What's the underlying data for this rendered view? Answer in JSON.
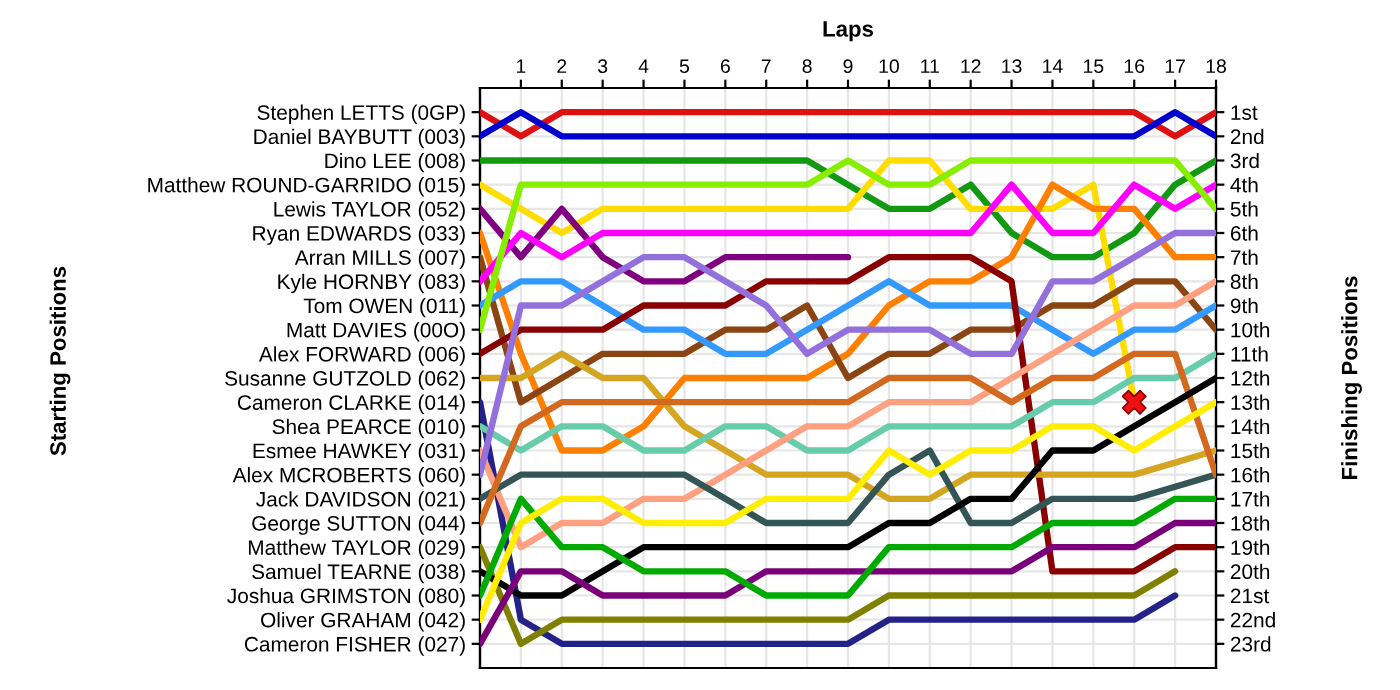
{
  "chart_data": {
    "type": "line",
    "xlabel": "Laps",
    "y2label": "Finishing Positions",
    "annotations": [
      "Starting Positions"
    ],
    "x": [
      0,
      1,
      2,
      3,
      4,
      5,
      6,
      7,
      8,
      9,
      10,
      11,
      12,
      13,
      14,
      15,
      16,
      17,
      18
    ],
    "xlim": [
      0,
      18
    ],
    "xticks": [
      1,
      2,
      3,
      4,
      5,
      6,
      7,
      8,
      9,
      10,
      11,
      12,
      13,
      14,
      15,
      16,
      17,
      18
    ],
    "y_categories": [
      "Stephen LETTS (0GP)",
      "Daniel BAYBUTT (003)",
      "Dino LEE (008)",
      "Matthew ROUND-GARRIDO (015)",
      "Lewis TAYLOR (052)",
      "Ryan EDWARDS (033)",
      "Arran MILLS (007)",
      "Kyle HORNBY (083)",
      "Tom OWEN (011)",
      "Matt DAVIES (00O)",
      "Alex FORWARD (006)",
      "Susanne GUTZOLD (062)",
      "Cameron CLARKE (014)",
      "Shea PEARCE (010)",
      "Esmee HAWKEY (031)",
      "Alex MCROBERTS (060)",
      "Jack DAVIDSON (021)",
      "George SUTTON (044)",
      "Matthew TAYLOR (029)",
      "Samuel TEARNE (038)",
      "Joshua GRIMSTON (080)",
      "Oliver GRAHAM (042)",
      "Cameron FISHER (027)"
    ],
    "y2lim": [
      24,
      0
    ],
    "y2ticks": [
      {
        "value": 1,
        "label": "1st"
      },
      {
        "value": 2,
        "label": "2nd"
      },
      {
        "value": 3,
        "label": "3rd"
      },
      {
        "value": 4,
        "label": "4th"
      },
      {
        "value": 5,
        "label": "5th"
      },
      {
        "value": 6,
        "label": "6th"
      },
      {
        "value": 7,
        "label": "7th"
      },
      {
        "value": 8,
        "label": "8th"
      },
      {
        "value": 9,
        "label": "9th"
      },
      {
        "value": 10,
        "label": "10th"
      },
      {
        "value": 11,
        "label": "11th"
      },
      {
        "value": 12,
        "label": "12th"
      },
      {
        "value": 13,
        "label": "13th"
      },
      {
        "value": 14,
        "label": "14th"
      },
      {
        "value": 15,
        "label": "15th"
      },
      {
        "value": 16,
        "label": "16th"
      },
      {
        "value": 17,
        "label": "17th"
      },
      {
        "value": 18,
        "label": "18th"
      },
      {
        "value": 19,
        "label": "19th"
      },
      {
        "value": 20,
        "label": "20th"
      },
      {
        "value": 21,
        "label": "21st"
      },
      {
        "value": 22,
        "label": "22nd"
      },
      {
        "value": 23,
        "label": "23rd"
      }
    ],
    "grid": true,
    "marker": "none",
    "line_style": "solid",
    "series": [
      {
        "axis": "y2",
        "color": "#dd1111",
        "values": [
          1,
          2,
          1,
          1,
          1,
          1,
          1,
          1,
          1,
          1,
          1,
          1,
          1,
          1,
          1,
          1,
          1,
          2,
          1
        ]
      },
      {
        "axis": "y2",
        "color": "#0000cc",
        "values": [
          2,
          1,
          2,
          2,
          2,
          2,
          2,
          2,
          2,
          2,
          2,
          2,
          2,
          2,
          2,
          2,
          2,
          1,
          2
        ]
      },
      {
        "axis": "y2",
        "color": "#119911",
        "values": [
          3,
          3,
          3,
          3,
          3,
          3,
          3,
          3,
          3,
          4,
          5,
          5,
          4,
          6,
          7,
          7,
          6,
          4,
          3
        ]
      },
      {
        "axis": "y2",
        "color": "#ffdd00",
        "values": [
          4,
          5,
          6,
          5,
          5,
          5,
          5,
          5,
          5,
          5,
          3,
          3,
          5,
          5,
          5,
          4,
          13,
          null,
          null
        ]
      },
      {
        "axis": "y2",
        "color": "#800080",
        "values": [
          5,
          7,
          5,
          7,
          8,
          8,
          7,
          7,
          7,
          7,
          null,
          null,
          null,
          null,
          null,
          null,
          null,
          null,
          null
        ]
      },
      {
        "axis": "y2",
        "color": "#ff8000",
        "values": [
          6,
          11,
          15,
          15,
          14,
          12,
          12,
          12,
          12,
          11,
          9,
          8,
          8,
          7,
          4,
          5,
          5,
          7,
          7
        ]
      },
      {
        "axis": "y2",
        "color": "#8b4513",
        "values": [
          7,
          13,
          12,
          11,
          11,
          11,
          10,
          10,
          9,
          12,
          11,
          11,
          10,
          10,
          9,
          9,
          8,
          8,
          10
        ]
      },
      {
        "axis": "y2",
        "color": "#ff00ff",
        "values": [
          8,
          6,
          7,
          6,
          6,
          6,
          6,
          6,
          6,
          6,
          6,
          6,
          6,
          4,
          6,
          6,
          4,
          5,
          4
        ]
      },
      {
        "axis": "y2",
        "color": "#3399ff",
        "values": [
          9,
          8,
          8,
          9,
          10,
          10,
          11,
          11,
          10,
          9,
          8,
          9,
          9,
          9,
          10,
          11,
          10,
          10,
          9
        ]
      },
      {
        "axis": "y2",
        "color": "#88ee00",
        "values": [
          10,
          4,
          4,
          4,
          4,
          4,
          4,
          4,
          4,
          3,
          4,
          4,
          3,
          3,
          3,
          3,
          3,
          3,
          5
        ]
      },
      {
        "axis": "y2",
        "color": "#880000",
        "values": [
          11,
          10,
          10,
          10,
          9,
          9,
          9,
          8,
          8,
          8,
          7,
          7,
          7,
          8,
          20,
          20,
          20,
          19,
          19
        ]
      },
      {
        "axis": "y2",
        "color": "#d4a520",
        "values": [
          12,
          12,
          11,
          12,
          12,
          14,
          15,
          16,
          16,
          16,
          17,
          17,
          16,
          16,
          16,
          16,
          16,
          15.5,
          15
        ]
      },
      {
        "axis": "y2",
        "color": "#222288",
        "values": [
          13,
          22,
          23,
          23,
          23,
          23,
          23,
          23,
          23,
          23,
          22,
          22,
          22,
          22,
          22,
          22,
          22,
          21,
          null
        ]
      },
      {
        "axis": "y2",
        "color": "#66ccaa",
        "values": [
          14,
          15,
          14,
          14,
          15,
          15,
          14,
          14,
          15,
          15,
          14,
          14,
          14,
          14,
          13,
          13,
          12,
          12,
          11
        ]
      },
      {
        "axis": "y2",
        "color": "#ffa080",
        "values": [
          15,
          19,
          18,
          18,
          17,
          17,
          16,
          15,
          14,
          14,
          13,
          13,
          13,
          12,
          11,
          10,
          9,
          9,
          8
        ]
      },
      {
        "axis": "y2",
        "color": "#9370db",
        "values": [
          16,
          9,
          9,
          8,
          7,
          7,
          8,
          9,
          11,
          10,
          10,
          10,
          11,
          11,
          8,
          8,
          7,
          6,
          6
        ]
      },
      {
        "axis": "y2",
        "color": "#335555",
        "values": [
          17,
          16,
          16,
          16,
          16,
          16,
          17,
          18,
          18,
          18,
          16,
          15,
          18,
          18,
          17,
          17,
          17,
          16.5,
          16
        ]
      },
      {
        "axis": "y2",
        "color": "#d2691e",
        "values": [
          18,
          14,
          13,
          13,
          13,
          13,
          13,
          13,
          13,
          13,
          12,
          12,
          12,
          13,
          12,
          12,
          11,
          11,
          16
        ]
      },
      {
        "axis": "y2",
        "color": "#808000",
        "values": [
          19,
          23,
          22,
          22,
          22,
          22,
          22,
          22,
          22,
          22,
          21,
          21,
          21,
          21,
          21,
          21,
          21,
          20,
          null
        ]
      },
      {
        "axis": "y2",
        "color": "#000000",
        "values": [
          20,
          21,
          21,
          20,
          19,
          19,
          19,
          19,
          19,
          19,
          18,
          18,
          17,
          17,
          15,
          15,
          14,
          13,
          12
        ]
      },
      {
        "axis": "y2",
        "color": "#7a007a",
        "values": [
          23,
          20,
          20,
          21,
          21,
          21,
          21,
          20,
          20,
          20,
          20,
          20,
          20,
          20,
          19,
          19,
          19,
          18,
          18
        ]
      },
      {
        "axis": "y2",
        "color": "#00aa00",
        "values": [
          21,
          17,
          19,
          19,
          20,
          20,
          20,
          21,
          21,
          21,
          19,
          19,
          19,
          19,
          18,
          18,
          18,
          17,
          17
        ]
      },
      {
        "axis": "y2",
        "color": "#ffee00",
        "values": [
          22,
          18,
          17,
          17,
          18,
          18,
          18,
          17,
          17,
          17,
          15,
          16,
          15,
          15,
          14,
          14,
          15,
          14,
          13
        ]
      },
      {
        "axis": "y2",
        "type": "scatter",
        "marker": "cross",
        "color": "#ee1111",
        "x": [
          16
        ],
        "values": [
          13
        ]
      }
    ]
  }
}
